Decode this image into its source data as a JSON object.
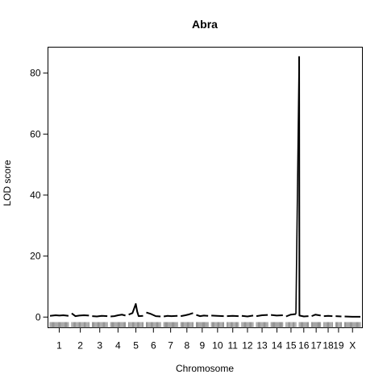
{
  "chart_data": {
    "type": "line",
    "title": "Abra",
    "xlabel": "Chromosome",
    "ylabel": "LOD score",
    "ylim": [
      -3.5,
      88.5
    ],
    "yticks": [
      0,
      20,
      40,
      60,
      80
    ],
    "grid": false,
    "legend": "none",
    "line_color": "#000000",
    "chromosomes": [
      {
        "label": "1",
        "length": 195,
        "lod": [
          [
            0,
            0.4
          ],
          [
            30,
            0.5
          ],
          [
            60,
            0.6
          ],
          [
            100,
            0.5
          ],
          [
            140,
            0.6
          ],
          [
            170,
            0.5
          ],
          [
            195,
            0.4
          ]
        ]
      },
      {
        "label": "2",
        "length": 182,
        "lod": [
          [
            0,
            1.2
          ],
          [
            40,
            0.3
          ],
          [
            80,
            0.5
          ],
          [
            130,
            0.6
          ],
          [
            182,
            0.5
          ]
        ]
      },
      {
        "label": "3",
        "length": 160,
        "lod": [
          [
            0,
            0.3
          ],
          [
            50,
            0.2
          ],
          [
            100,
            0.4
          ],
          [
            160,
            0.3
          ]
        ]
      },
      {
        "label": "4",
        "length": 157,
        "lod": [
          [
            0,
            0.2
          ],
          [
            40,
            0.3
          ],
          [
            80,
            0.6
          ],
          [
            120,
            0.8
          ],
          [
            157,
            0.5
          ]
        ]
      },
      {
        "label": "5",
        "length": 152,
        "lod": [
          [
            0,
            0.8
          ],
          [
            40,
            1.3
          ],
          [
            75,
            4.3
          ],
          [
            90,
            1.8
          ],
          [
            105,
            0.3
          ],
          [
            152,
            0.4
          ]
        ]
      },
      {
        "label": "6",
        "length": 150,
        "lod": [
          [
            0,
            1.5
          ],
          [
            50,
            1.0
          ],
          [
            100,
            0.3
          ],
          [
            150,
            0.2
          ]
        ]
      },
      {
        "label": "7",
        "length": 145,
        "lod": [
          [
            0,
            0.2
          ],
          [
            40,
            0.4
          ],
          [
            80,
            0.3
          ],
          [
            145,
            0.4
          ]
        ]
      },
      {
        "label": "8",
        "length": 130,
        "lod": [
          [
            0,
            0.3
          ],
          [
            50,
            0.6
          ],
          [
            90,
            0.9
          ],
          [
            130,
            1.3
          ]
        ]
      },
      {
        "label": "9",
        "length": 125,
        "lod": [
          [
            0,
            0.7
          ],
          [
            40,
            0.3
          ],
          [
            80,
            0.5
          ],
          [
            125,
            0.4
          ]
        ]
      },
      {
        "label": "10",
        "length": 131,
        "lod": [
          [
            0,
            0.5
          ],
          [
            60,
            0.4
          ],
          [
            131,
            0.3
          ]
        ]
      },
      {
        "label": "11",
        "length": 122,
        "lod": [
          [
            0,
            0.3
          ],
          [
            60,
            0.4
          ],
          [
            122,
            0.3
          ]
        ]
      },
      {
        "label": "12",
        "length": 120,
        "lod": [
          [
            0,
            0.4
          ],
          [
            60,
            0.2
          ],
          [
            120,
            0.5
          ]
        ]
      },
      {
        "label": "13",
        "length": 120,
        "lod": [
          [
            0,
            0.3
          ],
          [
            60,
            0.6
          ],
          [
            120,
            0.7
          ]
        ]
      },
      {
        "label": "14",
        "length": 125,
        "lod": [
          [
            0,
            0.7
          ],
          [
            60,
            0.5
          ],
          [
            125,
            0.6
          ]
        ]
      },
      {
        "label": "15",
        "length": 104,
        "lod": [
          [
            0,
            0.2
          ],
          [
            50,
            0.8
          ],
          [
            104,
            1.0
          ]
        ]
      },
      {
        "label": "16",
        "length": 98,
        "lod": [
          [
            0,
            85.5
          ],
          [
            3,
            0.5
          ],
          [
            50,
            0.2
          ],
          [
            98,
            0.3
          ]
        ]
      },
      {
        "label": "17",
        "length": 95,
        "lod": [
          [
            0,
            0.3
          ],
          [
            40,
            0.8
          ],
          [
            95,
            0.5
          ]
        ]
      },
      {
        "label": "18",
        "length": 90,
        "lod": [
          [
            0,
            0.3
          ],
          [
            45,
            0.4
          ],
          [
            90,
            0.3
          ]
        ]
      },
      {
        "label": "19",
        "length": 61,
        "lod": [
          [
            0,
            0.3
          ],
          [
            61,
            0.2
          ]
        ]
      },
      {
        "label": "X",
        "length": 166,
        "lod": [
          [
            0,
            0.2
          ],
          [
            80,
            0.1
          ],
          [
            166,
            0.1
          ]
        ]
      }
    ]
  }
}
